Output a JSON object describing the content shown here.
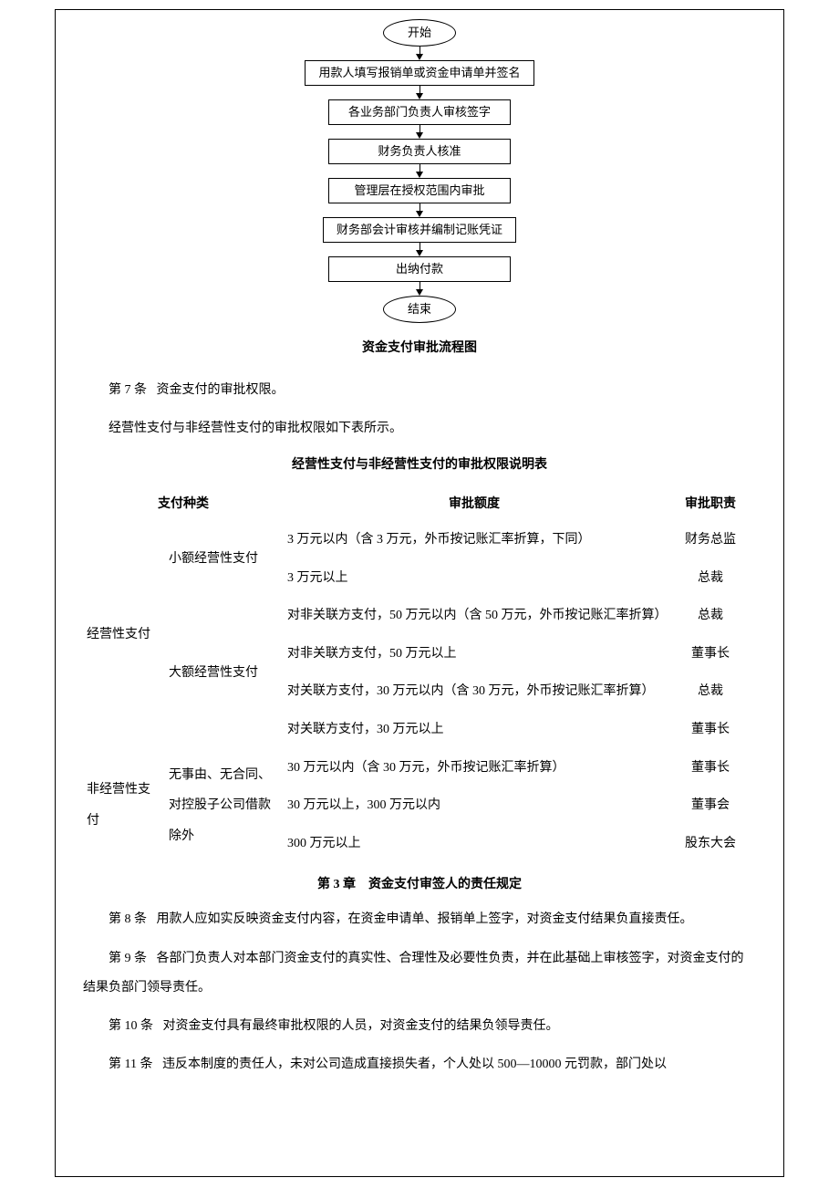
{
  "flowchart": {
    "nodes": [
      {
        "text": "开始",
        "type": "oval"
      },
      {
        "text": "用款人填写报销单或资金申请单并签名",
        "type": "rect"
      },
      {
        "text": "各业务部门负责人审核签字",
        "type": "rect"
      },
      {
        "text": "财务负责人核准",
        "type": "rect"
      },
      {
        "text": "管理层在授权范围内审批",
        "type": "rect"
      },
      {
        "text": "财务部会计审核并编制记账凭证",
        "type": "rect"
      },
      {
        "text": "出纳付款",
        "type": "rect"
      },
      {
        "text": "结束",
        "type": "oval"
      }
    ],
    "title": "资金支付审批流程图"
  },
  "article7": {
    "label": "第 7 条",
    "text": "资金支付的审批权限。"
  },
  "intro_text": "经营性支付与非经营性支付的审批权限如下表所示。",
  "table": {
    "title": "经营性支付与非经营性支付的审批权限说明表",
    "headers": {
      "col1": "支付种类",
      "col2": "",
      "col3": "审批额度",
      "col4": "审批职责"
    },
    "rows": [
      {
        "cat1": "经营性支付",
        "cat2": "小额经营性支付",
        "limit": "3 万元以内（含 3 万元，外币按记账汇率折算，下同）",
        "role": "财务总监",
        "cat1_rowspan": 6,
        "cat2_rowspan": 2
      },
      {
        "limit": "3 万元以上",
        "role": "总裁"
      },
      {
        "cat2": "大额经营性支付",
        "limit": "对非关联方支付，50 万元以内（含 50 万元，外币按记账汇率折算）",
        "role": "总裁",
        "cat2_rowspan": 4
      },
      {
        "limit": "对非关联方支付，50 万元以上",
        "role": "董事长"
      },
      {
        "limit": "对关联方支付，30 万元以内（含 30 万元，外币按记账汇率折算）",
        "role": "总裁"
      },
      {
        "limit": "对关联方支付，30 万元以上",
        "role": "董事长"
      },
      {
        "cat1": "非经营性支付",
        "cat2": "无事由、无合同、对控股子公司借款除外",
        "limit": "30 万元以内（含 30 万元，外币按记账汇率折算）",
        "role": "董事长",
        "cat1_rowspan": 3,
        "cat2_rowspan": 3
      },
      {
        "limit": "30 万元以上，300 万元以内",
        "role": "董事会"
      },
      {
        "limit": "300 万元以上",
        "role": "股东大会"
      }
    ]
  },
  "chapter3": {
    "title": "第 3 章　资金支付审签人的责任规定"
  },
  "article8": {
    "label": "第 8 条",
    "text": "用款人应如实反映资金支付内容，在资金申请单、报销单上签字，对资金支付结果负直接责任。"
  },
  "article9": {
    "label": "第 9 条",
    "text": "各部门负责人对本部门资金支付的真实性、合理性及必要性负责，并在此基础上审核签字，对资金支付的结果负部门领导责任。"
  },
  "article10": {
    "label": "第 10 条",
    "text": "对资金支付具有最终审批权限的人员，对资金支付的结果负领导责任。"
  },
  "article11": {
    "label": "第 11 条",
    "text": "违反本制度的责任人，未对公司造成直接损失者，个人处以 500—10000 元罚款，部门处以"
  }
}
